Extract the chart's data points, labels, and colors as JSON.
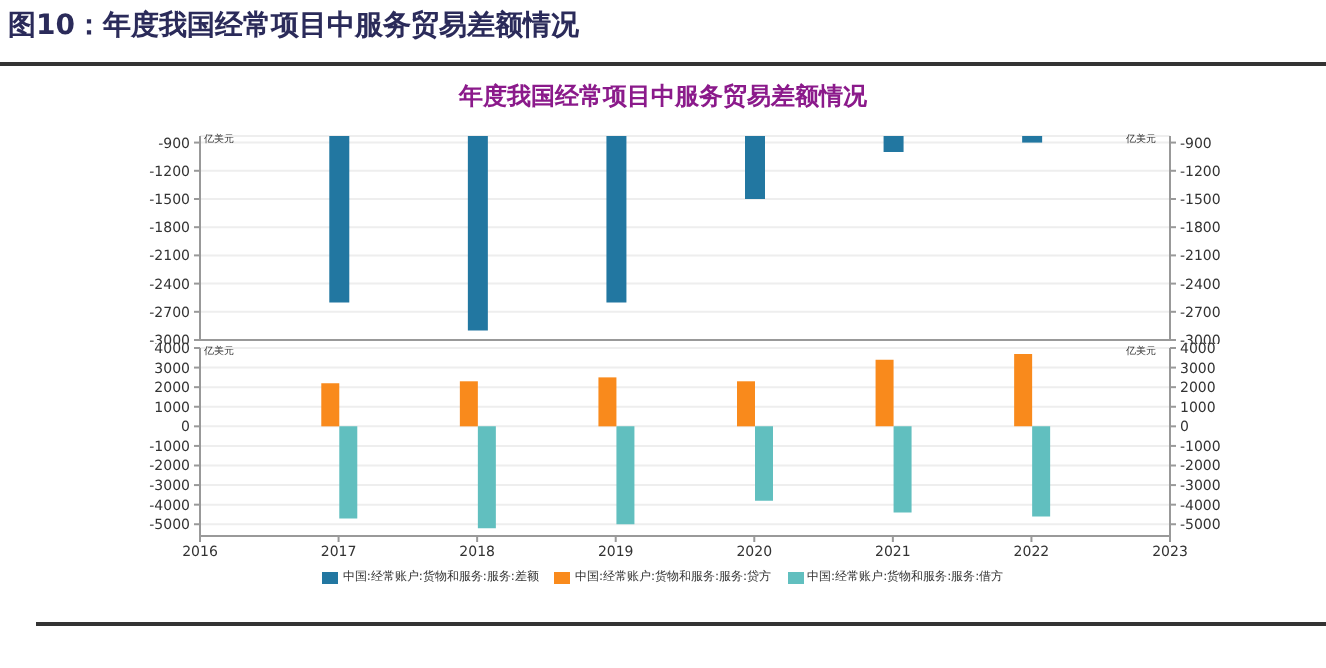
{
  "chart_data": [
    {
      "type": "bar",
      "title": "年度我国经常项目中服务贸易差额情况",
      "annotations": [
        "图10：年度我国经常项目中服务贸易差额情况"
      ],
      "ylabel": "亿美元",
      "y2label": "亿美元",
      "x": [
        2017,
        2018,
        2019,
        2020,
        2021,
        2022
      ],
      "xlim": [
        2016,
        2023
      ],
      "xticks": [
        2016,
        2017,
        2018,
        2019,
        2020,
        2021,
        2022,
        2023
      ],
      "ylim": [
        -3000,
        -830
      ],
      "yticks": [
        -900,
        -1200,
        -1500,
        -1800,
        -2100,
        -2400,
        -2700,
        -3000
      ],
      "y2lim": [
        -3000,
        -830
      ],
      "y2ticks": [
        -900,
        -1200,
        -1500,
        -1800,
        -2100,
        -2400,
        -2700,
        -3000
      ],
      "tick_labels": "y",
      "grid": "y",
      "legend": "bottom",
      "series": [
        {
          "name": "中国:经常账户:货物和服务:服务:差额",
          "color": "#2277a1",
          "values": [
            -2600,
            -2900,
            -2600,
            -1500,
            -1000,
            -900
          ]
        }
      ]
    },
    {
      "type": "bar",
      "ylabel": "亿美元",
      "y2label": "亿美元",
      "x": [
        2017,
        2018,
        2019,
        2020,
        2021,
        2022
      ],
      "xlim": [
        2016,
        2023
      ],
      "xticks": [
        2016,
        2017,
        2018,
        2019,
        2020,
        2021,
        2022,
        2023
      ],
      "ylim": [
        -5600,
        4000
      ],
      "yticks": [
        4000,
        3000,
        2000,
        1000,
        0,
        -1000,
        -2000,
        -3000,
        -4000,
        -5000
      ],
      "y2lim": [
        -5600,
        4000
      ],
      "y2ticks": [
        4000,
        3000,
        2000,
        1000,
        0,
        -1000,
        -2000,
        -3000,
        -4000,
        -5000
      ],
      "grid": "y",
      "legend": "bottom",
      "series": [
        {
          "name": "中国:经常账户:货物和服务:服务:贷方",
          "color": "#f98a1c",
          "values": [
            2200,
            2300,
            2500,
            2300,
            3400,
            3700
          ]
        },
        {
          "name": "中国:经常账户:货物和服务:服务:借方",
          "color": "#61bfbf",
          "values": [
            -4700,
            -5200,
            -5000,
            -3800,
            -4400,
            -4600
          ]
        }
      ]
    }
  ]
}
